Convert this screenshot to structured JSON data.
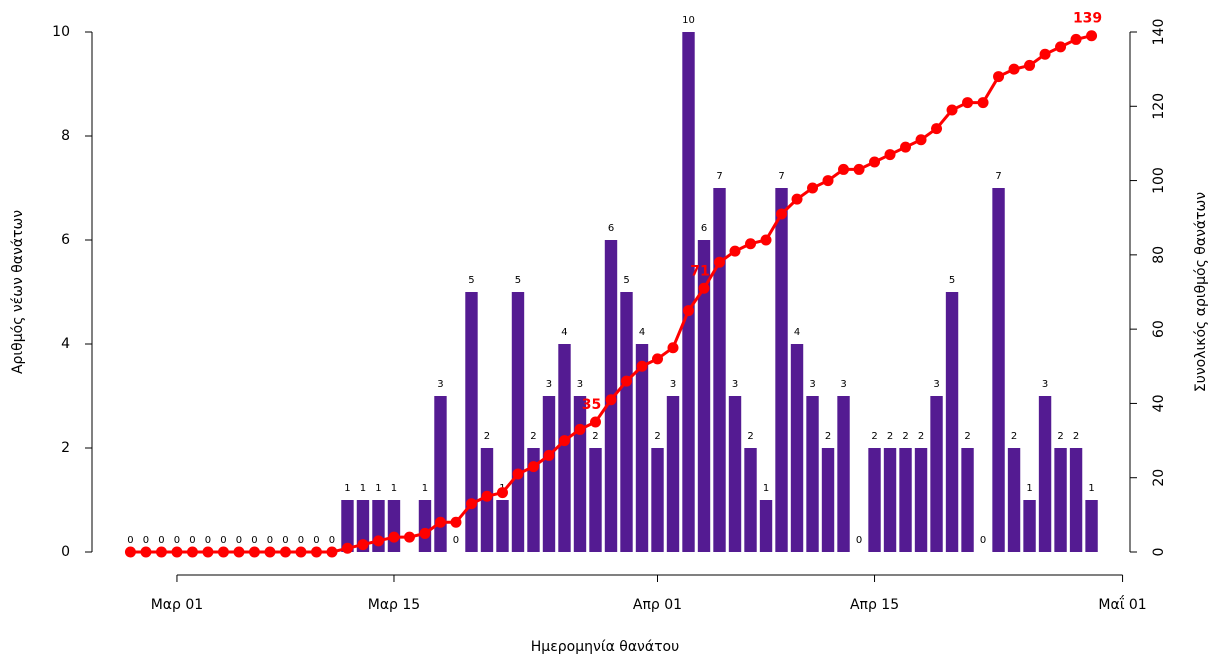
{
  "chart_data": {
    "type": "combo",
    "x_label": "Ημερομηνία θανάτου",
    "y_label": "Αριθμός νέων θανάτων",
    "y2_label": "Συνολικός αριθμός θανάτων",
    "x": [
      -3,
      -2,
      -1,
      0,
      1,
      2,
      3,
      4,
      5,
      6,
      7,
      8,
      9,
      10,
      11,
      12,
      13,
      14,
      15,
      16,
      17,
      18,
      19,
      20,
      21,
      22,
      23,
      24,
      25,
      26,
      27,
      28,
      29,
      30,
      31,
      32,
      33,
      34,
      35,
      36,
      37,
      38,
      39,
      40,
      41,
      42,
      43,
      44,
      45,
      46,
      47,
      48,
      49,
      50,
      51,
      52,
      53,
      54,
      55,
      56,
      57,
      58,
      59
    ],
    "series": [
      {
        "type": "bar",
        "color": "#541b92",
        "values": [
          0,
          0,
          0,
          0,
          0,
          0,
          0,
          0,
          0,
          0,
          0,
          0,
          0,
          0,
          1,
          1,
          1,
          1,
          null,
          1,
          3,
          0,
          5,
          2,
          1,
          5,
          2,
          3,
          4,
          3,
          2,
          6,
          5,
          4,
          2,
          3,
          10,
          6,
          7,
          3,
          2,
          1,
          7,
          4,
          3,
          2,
          3,
          0,
          2,
          2,
          2,
          2,
          3,
          5,
          2,
          0,
          7,
          2,
          1,
          3,
          2,
          2,
          1
        ]
      },
      {
        "type": "line",
        "axis": "y2",
        "color": "#ff0000",
        "values": [
          0,
          0,
          0,
          0,
          0,
          0,
          0,
          0,
          0,
          0,
          0,
          0,
          0,
          0,
          1,
          2,
          3,
          4,
          4,
          5,
          8,
          8,
          13,
          15,
          16,
          21,
          23,
          26,
          30,
          33,
          35,
          41,
          46,
          50,
          52,
          55,
          65,
          71,
          78,
          81,
          83,
          84,
          91,
          95,
          98,
          100,
          103,
          103,
          105,
          107,
          109,
          111,
          114,
          119,
          121,
          121,
          128,
          130,
          131,
          134,
          136,
          138,
          139
        ],
        "value_labels": [
          null,
          null,
          null,
          null,
          null,
          null,
          null,
          null,
          null,
          null,
          null,
          null,
          null,
          null,
          null,
          null,
          null,
          null,
          null,
          null,
          null,
          null,
          null,
          null,
          null,
          null,
          null,
          null,
          null,
          null,
          "35",
          null,
          null,
          null,
          null,
          null,
          null,
          "71",
          null,
          null,
          null,
          null,
          null,
          null,
          null,
          null,
          null,
          null,
          null,
          null,
          null,
          null,
          null,
          null,
          null,
          null,
          null,
          null,
          null,
          null,
          null,
          null,
          "139"
        ]
      }
    ],
    "xlim": [
      -5.48,
      61.48
    ],
    "xticks": [
      {
        "value": 0,
        "label": "Μαρ 01"
      },
      {
        "value": 14,
        "label": "Μαρ 15"
      },
      {
        "value": 31,
        "label": "Απρ 01"
      },
      {
        "value": 45,
        "label": "Απρ 15"
      },
      {
        "value": 61,
        "label": "Μαΐ 01"
      }
    ],
    "ylim": [
      0,
      10
    ],
    "yticks": [
      0,
      2,
      4,
      6,
      8,
      10
    ],
    "y2lim": [
      0,
      140
    ],
    "y2ticks": [
      0,
      20,
      40,
      60,
      80,
      100,
      120,
      140
    ]
  }
}
